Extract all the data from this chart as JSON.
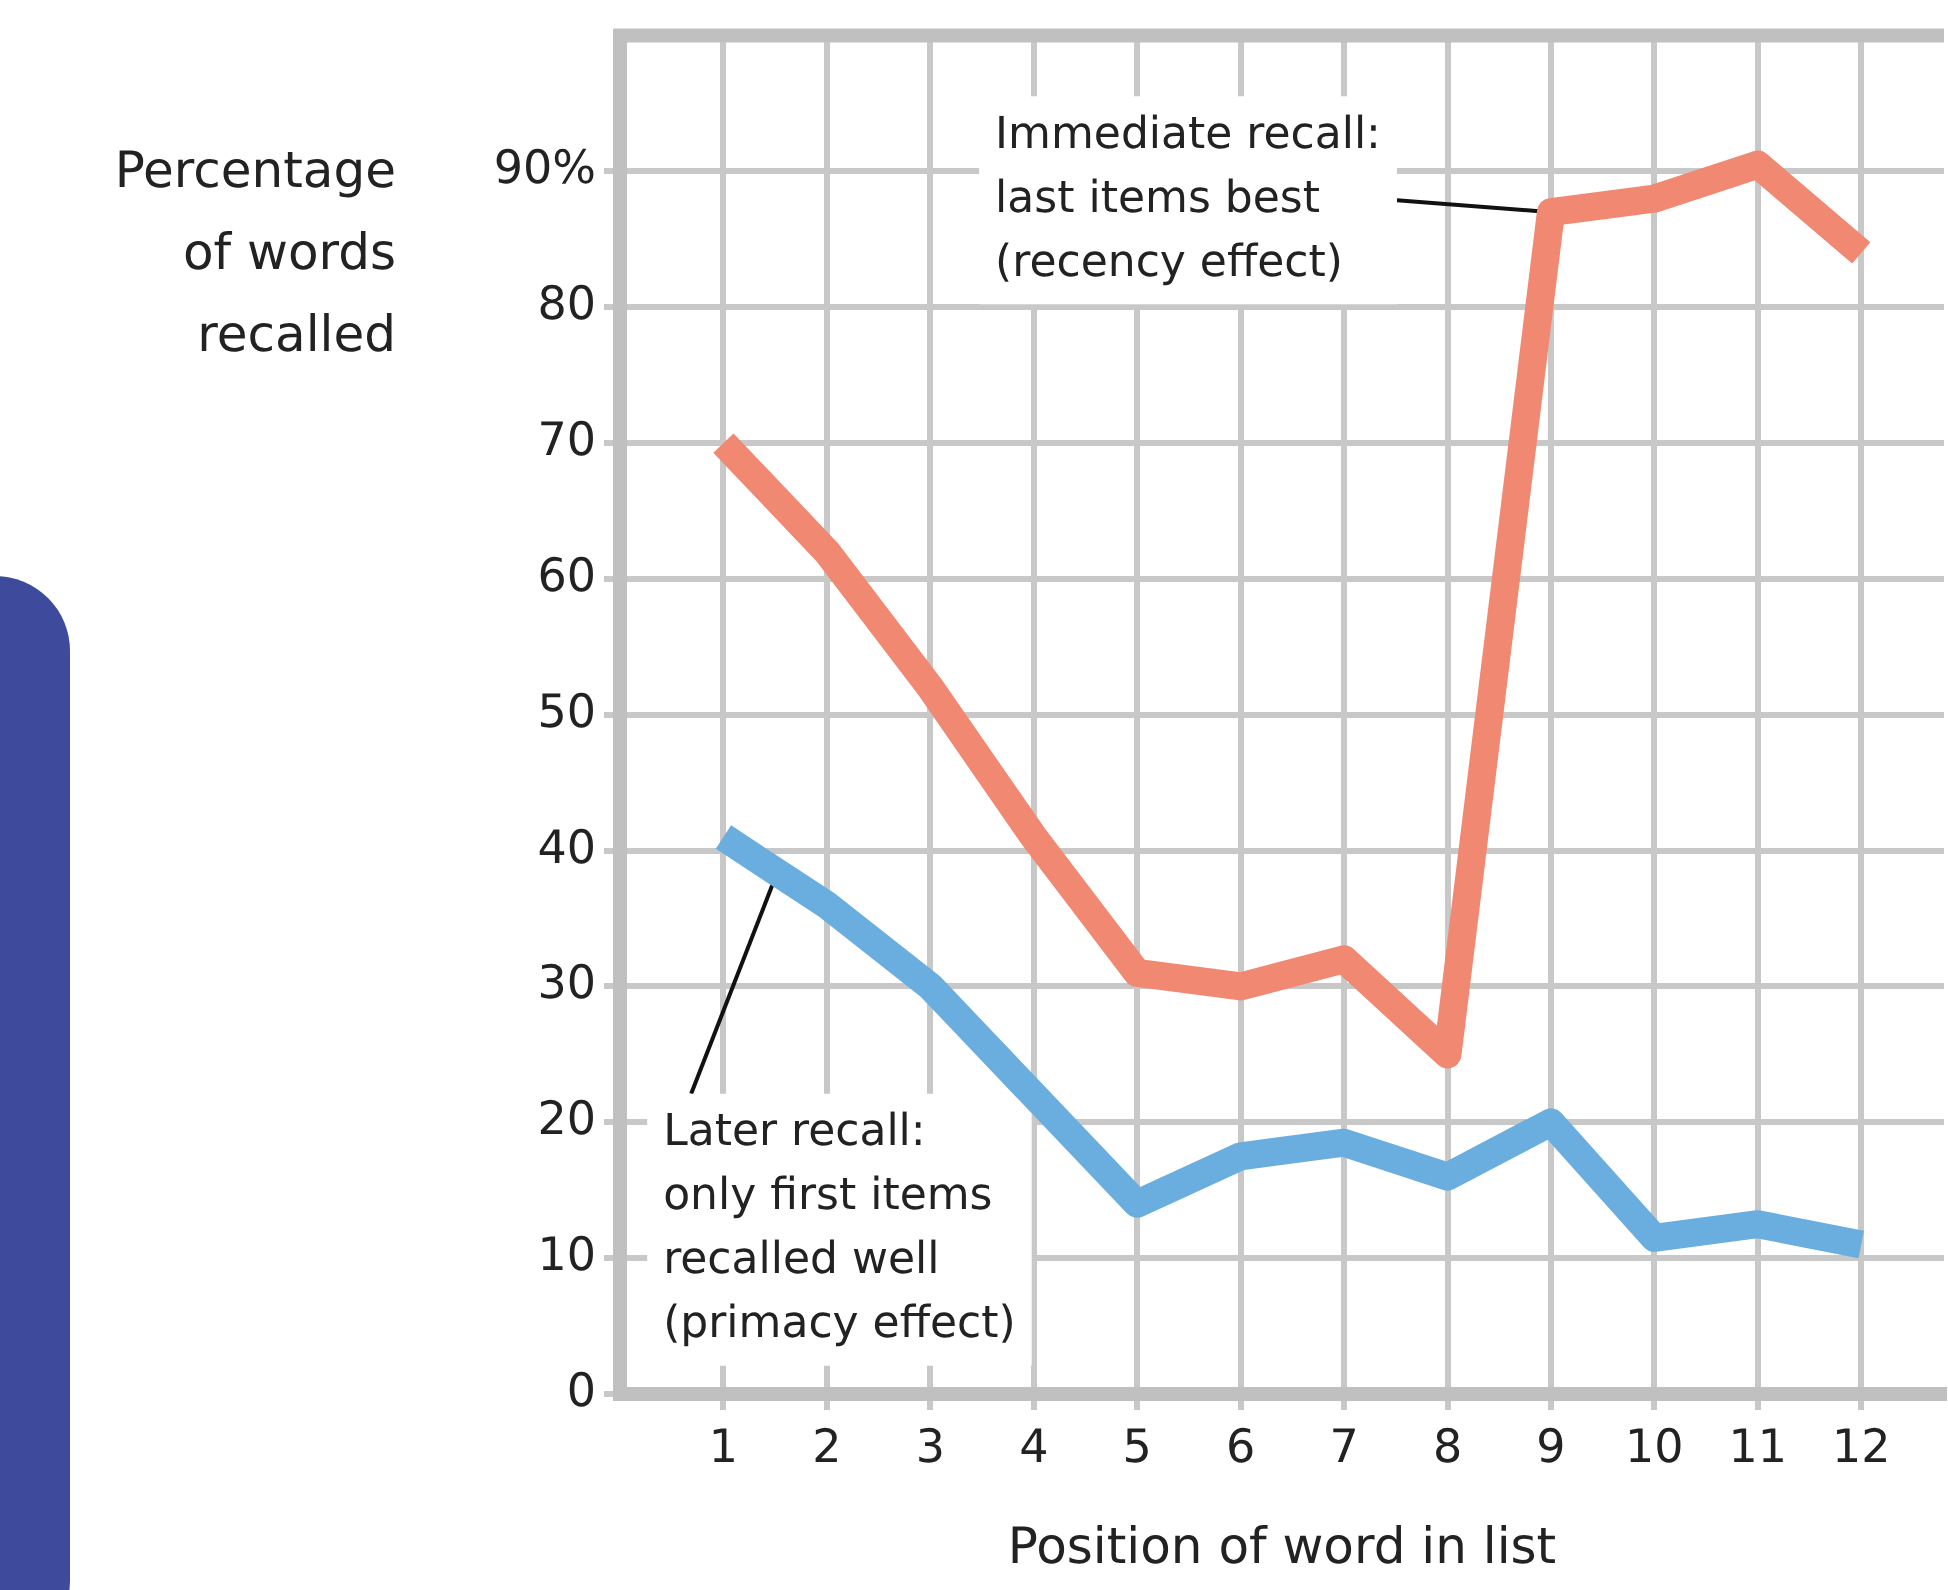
{
  "chart_data": {
    "type": "line",
    "xlabel": "Position of word in list",
    "ylabel": "Percentage\nof words\nrecalled",
    "x": [
      1,
      2,
      3,
      4,
      5,
      6,
      7,
      8,
      9,
      10,
      11,
      12
    ],
    "series": [
      {
        "color": "#f08872",
        "values": [
          70,
          62,
          52,
          41,
          31,
          30,
          32,
          25,
          87,
          88,
          90.5,
          84
        ]
      },
      {
        "color": "#6aaee0",
        "values": [
          41,
          36,
          30,
          22,
          14,
          17.5,
          18.5,
          16,
          20,
          11.5,
          12.5,
          11
        ]
      }
    ],
    "xlim": [
      0,
      12.8
    ],
    "xticks": [
      1,
      2,
      3,
      4,
      5,
      6,
      7,
      8,
      9,
      10,
      11,
      12
    ],
    "ylim": [
      0,
      100
    ],
    "yticks": [
      0,
      10,
      20,
      30,
      40,
      50,
      60,
      70,
      80,
      {
        "value": 90,
        "label": "90%"
      }
    ],
    "grid": true,
    "marker": "none",
    "line_style": "solid",
    "annotations": [
      {
        "text": "Immediate recall:\nlast items best\n(recency effect)",
        "x": 9,
        "y": 87
      },
      {
        "text": "Later recall:\nonly first items\nrecalled well\n(primacy effect)",
        "x": 1.5,
        "y": 38
      }
    ]
  }
}
